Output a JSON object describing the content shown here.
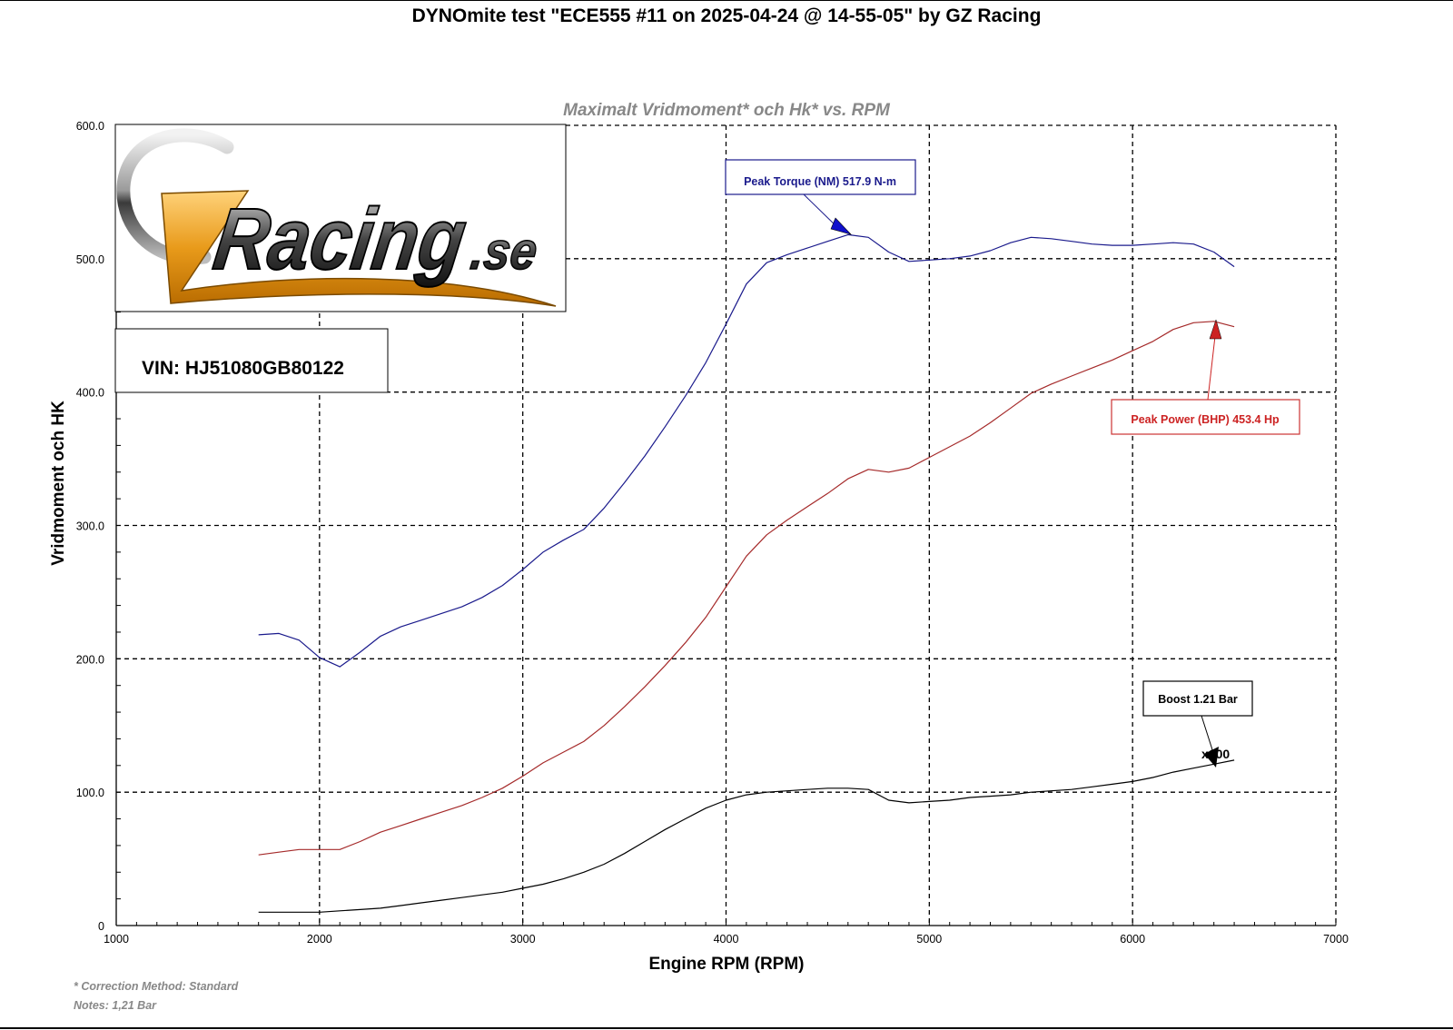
{
  "page": {
    "title": "DYNOmite test \"ECE555 #11 on 2025-04-24 @ 14-55-05\" by GZ Racing",
    "footnote_correction": "* Correction Method: Standard",
    "footnote_notes": "Notes: 1,21 Bar"
  },
  "logo": {
    "text_main": "Racing",
    "text_suffix": ".se",
    "letter": "G"
  },
  "vin": {
    "label": "VIN: HJ51080GB80122"
  },
  "annotations": {
    "peak_torque": "Peak Torque (NM) 517.9 N-m",
    "peak_power": "Peak Power (BHP) 453.4 Hp",
    "boost": "Boost 1.21 Bar",
    "boost_scale": "x100"
  },
  "colors": {
    "torque": "#1a1a8c",
    "power": "#a52a2a",
    "boost": "#000000",
    "power_arrow": "#cc2222",
    "torque_arrow": "#1010cc"
  },
  "chart_data": {
    "type": "line",
    "title": "Maximalt Vridmoment* och Hk* vs. RPM",
    "xlabel": "Engine RPM (RPM)",
    "ylabel": "Vridmoment och HK",
    "xlim": [
      1000,
      7000
    ],
    "ylim": [
      0,
      600
    ],
    "xticks": [
      1000,
      2000,
      3000,
      4000,
      5000,
      6000,
      7000
    ],
    "yticks": [
      "0",
      "100.0",
      "200.0",
      "300.0",
      "400.0",
      "500.0",
      "600.0"
    ],
    "grid": true,
    "series": [
      {
        "key": "torque",
        "x": [
          1700,
          1800,
          1900,
          2000,
          2100,
          2200,
          2300,
          2400,
          2500,
          2600,
          2700,
          2800,
          2900,
          3000,
          3100,
          3200,
          3300,
          3400,
          3500,
          3600,
          3700,
          3800,
          3900,
          4000,
          4100,
          4200,
          4300,
          4400,
          4500,
          4600,
          4700,
          4800,
          4900,
          5000,
          5100,
          5200,
          5300,
          5400,
          5500,
          5600,
          5700,
          5800,
          5900,
          6000,
          6100,
          6200,
          6300,
          6400,
          6500
        ],
        "y": [
          218,
          219,
          214,
          201,
          194,
          205,
          217,
          224,
          229,
          234,
          239,
          246,
          255,
          267,
          280,
          289,
          297,
          313,
          332,
          352,
          374,
          397,
          422,
          451,
          481,
          497,
          503,
          508,
          513,
          518,
          516,
          505,
          498,
          499,
          500,
          502,
          506,
          512,
          516,
          515,
          513,
          511,
          510,
          510,
          511,
          512,
          511,
          505,
          494
        ]
      },
      {
        "key": "power",
        "x": [
          1700,
          1800,
          1900,
          2000,
          2100,
          2200,
          2300,
          2400,
          2500,
          2600,
          2700,
          2800,
          2900,
          3000,
          3100,
          3200,
          3300,
          3400,
          3500,
          3600,
          3700,
          3800,
          3900,
          4000,
          4100,
          4200,
          4300,
          4400,
          4500,
          4600,
          4700,
          4800,
          4900,
          5000,
          5100,
          5200,
          5300,
          5400,
          5500,
          5600,
          5700,
          5800,
          5900,
          6000,
          6100,
          6200,
          6300,
          6400,
          6500
        ],
        "y": [
          53,
          55,
          57,
          57,
          57,
          63,
          70,
          75,
          80,
          85,
          90,
          96,
          103,
          112,
          122,
          130,
          138,
          150,
          164,
          179,
          195,
          212,
          231,
          254,
          277,
          293,
          304,
          314,
          324,
          335,
          342,
          340,
          343,
          351,
          359,
          367,
          377,
          388,
          399,
          406,
          412,
          418,
          424,
          431,
          438,
          447,
          452,
          453,
          449
        ]
      },
      {
        "key": "boost",
        "x": [
          1700,
          1800,
          1900,
          2000,
          2100,
          2200,
          2300,
          2400,
          2500,
          2600,
          2700,
          2800,
          2900,
          3000,
          3100,
          3200,
          3300,
          3400,
          3500,
          3600,
          3700,
          3800,
          3900,
          4000,
          4100,
          4200,
          4300,
          4400,
          4500,
          4600,
          4700,
          4800,
          4900,
          5000,
          5100,
          5200,
          5300,
          5400,
          5500,
          5600,
          5700,
          5800,
          5900,
          6000,
          6100,
          6200,
          6300,
          6400,
          6500
        ],
        "y": [
          10,
          10,
          10,
          10,
          11,
          12,
          13,
          15,
          17,
          19,
          21,
          23,
          25,
          28,
          31,
          35,
          40,
          46,
          54,
          63,
          72,
          80,
          88,
          94,
          98,
          100,
          101,
          102,
          103,
          103,
          102,
          94,
          92,
          93,
          94,
          96,
          97,
          98,
          100,
          101,
          102,
          104,
          106,
          108,
          111,
          115,
          118,
          121,
          124
        ]
      }
    ]
  }
}
